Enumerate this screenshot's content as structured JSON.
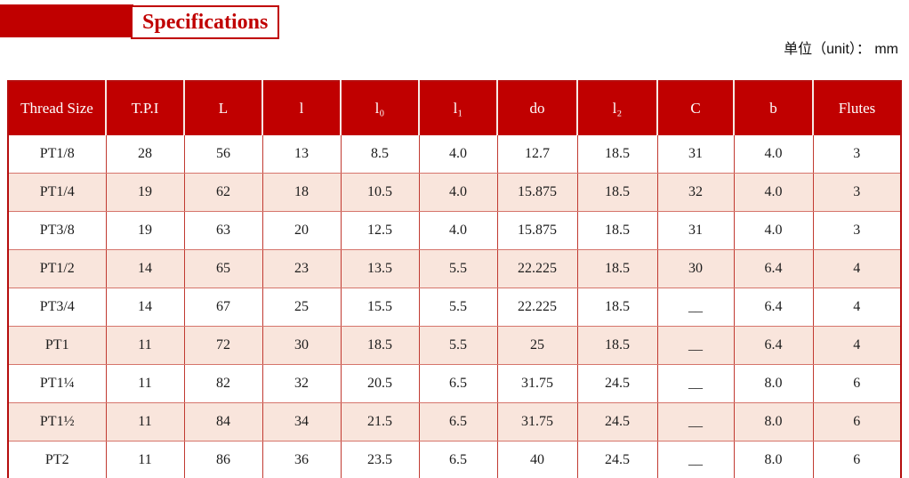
{
  "page": {
    "title": "Specifications",
    "unit_label": "单位（unit）： mm"
  },
  "colors": {
    "accent_red": "#c00000",
    "row_pink": "#f9e5dc",
    "grid_red": "#c13a31"
  },
  "table": {
    "columns": [
      "Thread Size",
      "T.P.I",
      "L",
      "l",
      "l₀",
      "l₁",
      "do",
      "l₂",
      "C",
      "b",
      "Flutes"
    ],
    "rows": [
      [
        "PT1/8",
        "28",
        "56",
        "13",
        "8.5",
        "4.0",
        "12.7",
        "18.5",
        "31",
        "4.0",
        "3"
      ],
      [
        "PT1/4",
        "19",
        "62",
        "18",
        "10.5",
        "4.0",
        "15.875",
        "18.5",
        "32",
        "4.0",
        "3"
      ],
      [
        "PT3/8",
        "19",
        "63",
        "20",
        "12.5",
        "4.0",
        "15.875",
        "18.5",
        "31",
        "4.0",
        "3"
      ],
      [
        "PT1/2",
        "14",
        "65",
        "23",
        "13.5",
        "5.5",
        "22.225",
        "18.5",
        "30",
        "6.4",
        "4"
      ],
      [
        "PT3/4",
        "14",
        "67",
        "25",
        "15.5",
        "5.5",
        "22.225",
        "18.5",
        "__",
        "6.4",
        "4"
      ],
      [
        "PT1",
        "11",
        "72",
        "30",
        "18.5",
        "5.5",
        "25",
        "18.5",
        "__",
        "6.4",
        "4"
      ],
      [
        "PT1¼",
        "11",
        "82",
        "32",
        "20.5",
        "6.5",
        "31.75",
        "24.5",
        "__",
        "8.0",
        "6"
      ],
      [
        "PT1½",
        "11",
        "84",
        "34",
        "21.5",
        "6.5",
        "31.75",
        "24.5",
        "__",
        "8.0",
        "6"
      ],
      [
        "PT2",
        "11",
        "86",
        "36",
        "23.5",
        "6.5",
        "40",
        "24.5",
        "__",
        "8.0",
        "6"
      ]
    ]
  }
}
